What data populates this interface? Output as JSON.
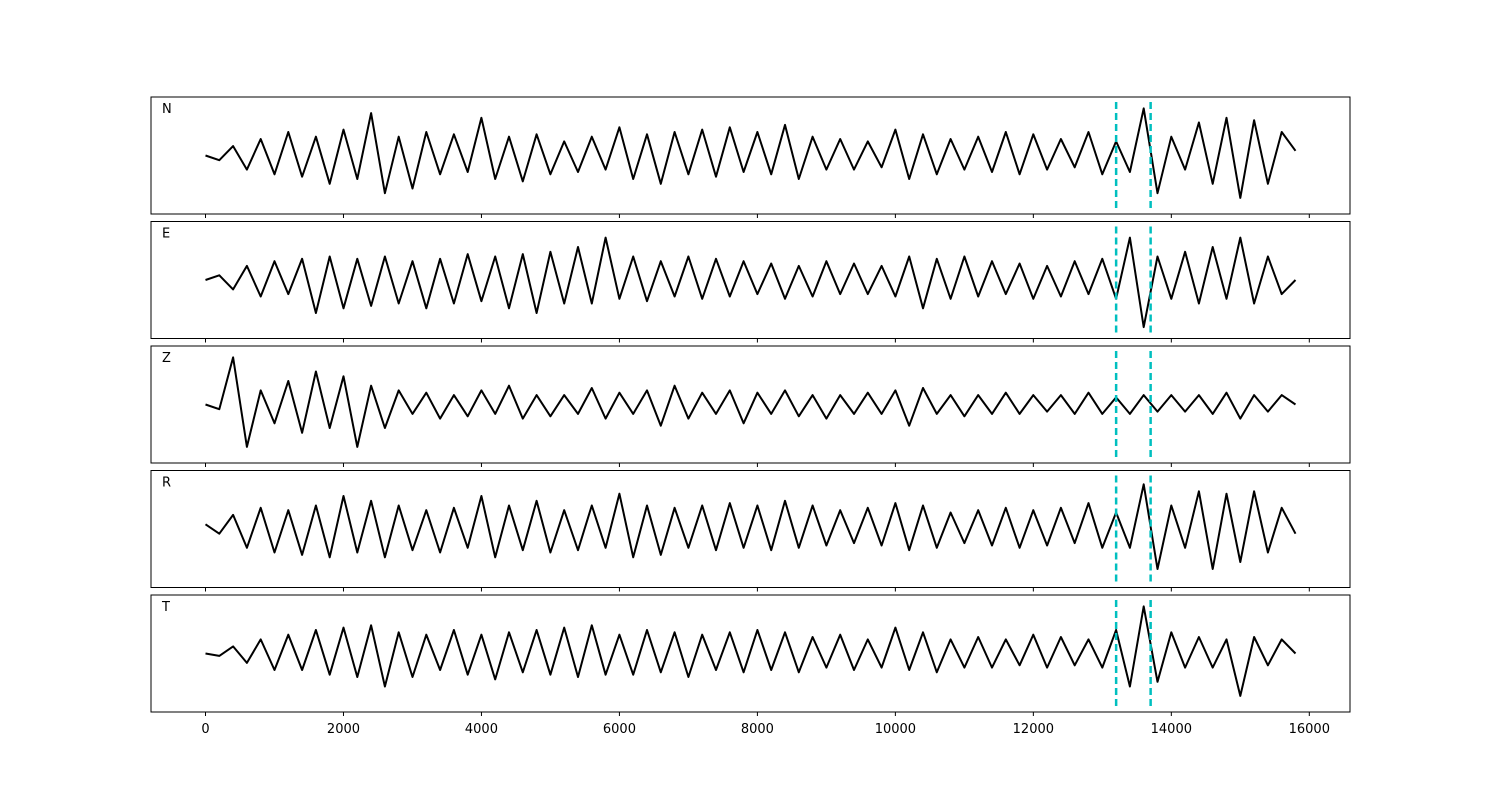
{
  "chart_data": [
    {
      "type": "line",
      "label": "N",
      "color": "#000000",
      "ylim": [
        -1.2,
        1.2
      ],
      "vlines": [
        13200,
        13700
      ],
      "vline_color": "#00bfbf",
      "x": [
        0,
        200,
        400,
        600,
        800,
        1000,
        1200,
        1400,
        1600,
        1800,
        2000,
        2200,
        2400,
        2600,
        2800,
        3000,
        3200,
        3400,
        3600,
        3800,
        4000,
        4200,
        4400,
        4600,
        4800,
        5000,
        5200,
        5400,
        5600,
        5800,
        6000,
        6200,
        6400,
        6600,
        6800,
        7000,
        7200,
        7400,
        7600,
        7800,
        8000,
        8200,
        8400,
        8600,
        8800,
        9000,
        9200,
        9400,
        9600,
        9800,
        10000,
        10200,
        10400,
        10600,
        10800,
        11000,
        11200,
        11400,
        11600,
        11800,
        12000,
        12200,
        12400,
        12600,
        12800,
        13000,
        13200,
        13400,
        13600,
        13800,
        14000,
        14200,
        14400,
        14600,
        14800,
        15000,
        15200,
        15400,
        15600,
        15800
      ],
      "values": [
        0,
        -0.1,
        0.2,
        -0.3,
        0.35,
        -0.4,
        0.5,
        -0.45,
        0.4,
        -0.6,
        0.55,
        -0.5,
        0.9,
        -0.8,
        0.4,
        -0.7,
        0.5,
        -0.4,
        0.45,
        -0.35,
        0.8,
        -0.5,
        0.4,
        -0.55,
        0.45,
        -0.4,
        0.3,
        -0.35,
        0.4,
        -0.3,
        0.6,
        -0.5,
        0.45,
        -0.6,
        0.5,
        -0.4,
        0.55,
        -0.45,
        0.6,
        -0.35,
        0.5,
        -0.4,
        0.65,
        -0.5,
        0.4,
        -0.3,
        0.35,
        -0.3,
        0.3,
        -0.25,
        0.55,
        -0.5,
        0.45,
        -0.4,
        0.35,
        -0.3,
        0.4,
        -0.35,
        0.5,
        -0.4,
        0.45,
        -0.3,
        0.35,
        -0.25,
        0.5,
        -0.4,
        0.3,
        -0.35,
        1.0,
        -0.8,
        0.4,
        -0.3,
        0.7,
        -0.6,
        0.8,
        -0.9,
        0.75,
        -0.6,
        0.5,
        0.1
      ]
    },
    {
      "type": "line",
      "label": "E",
      "color": "#000000",
      "ylim": [
        -1.2,
        1.2
      ],
      "vlines": [
        13200,
        13700
      ],
      "vline_color": "#00bfbf",
      "x": [
        0,
        200,
        400,
        600,
        800,
        1000,
        1200,
        1400,
        1600,
        1800,
        2000,
        2200,
        2400,
        2600,
        2800,
        3000,
        3200,
        3400,
        3600,
        3800,
        4000,
        4200,
        4400,
        4600,
        4800,
        5000,
        5200,
        5400,
        5600,
        5800,
        6000,
        6200,
        6400,
        6600,
        6800,
        7000,
        7200,
        7400,
        7600,
        7800,
        8000,
        8200,
        8400,
        8600,
        8800,
        9000,
        9200,
        9400,
        9600,
        9800,
        10000,
        10200,
        10400,
        10600,
        10800,
        11000,
        11200,
        11400,
        11600,
        11800,
        12000,
        12200,
        12400,
        12600,
        12800,
        13000,
        13200,
        13400,
        13600,
        13800,
        14000,
        14200,
        14400,
        14600,
        14800,
        15000,
        15200,
        15400,
        15600,
        15800
      ],
      "values": [
        0,
        0.1,
        -0.2,
        0.3,
        -0.35,
        0.4,
        -0.3,
        0.45,
        -0.7,
        0.5,
        -0.6,
        0.45,
        -0.55,
        0.5,
        -0.5,
        0.4,
        -0.6,
        0.45,
        -0.5,
        0.55,
        -0.45,
        0.5,
        -0.6,
        0.55,
        -0.7,
        0.6,
        -0.5,
        0.7,
        -0.5,
        0.9,
        -0.4,
        0.5,
        -0.45,
        0.4,
        -0.35,
        0.5,
        -0.4,
        0.45,
        -0.35,
        0.4,
        -0.3,
        0.35,
        -0.4,
        0.3,
        -0.35,
        0.4,
        -0.3,
        0.35,
        -0.3,
        0.3,
        -0.35,
        0.5,
        -0.6,
        0.45,
        -0.4,
        0.5,
        -0.35,
        0.4,
        -0.3,
        0.35,
        -0.4,
        0.3,
        -0.35,
        0.4,
        -0.3,
        0.45,
        -0.4,
        0.9,
        -1.0,
        0.5,
        -0.4,
        0.6,
        -0.5,
        0.7,
        -0.4,
        0.9,
        -0.5,
        0.5,
        -0.3,
        0.0
      ]
    },
    {
      "type": "line",
      "label": "Z",
      "color": "#000000",
      "ylim": [
        -1.2,
        1.2
      ],
      "vlines": [
        13200,
        13700
      ],
      "vline_color": "#00bfbf",
      "x": [
        0,
        200,
        400,
        600,
        800,
        1000,
        1200,
        1400,
        1600,
        1800,
        2000,
        2200,
        2400,
        2600,
        2800,
        3000,
        3200,
        3400,
        3600,
        3800,
        4000,
        4200,
        4400,
        4600,
        4800,
        5000,
        5200,
        5400,
        5600,
        5800,
        6000,
        6200,
        6400,
        6600,
        6800,
        7000,
        7200,
        7400,
        7600,
        7800,
        8000,
        8200,
        8400,
        8600,
        8800,
        9000,
        9200,
        9400,
        9600,
        9800,
        10000,
        10200,
        10400,
        10600,
        10800,
        11000,
        11200,
        11400,
        11600,
        11800,
        12000,
        12200,
        12400,
        12600,
        12800,
        13000,
        13200,
        13400,
        13600,
        13800,
        14000,
        14200,
        14400,
        14600,
        14800,
        15000,
        15200,
        15400,
        15600,
        15800
      ],
      "values": [
        0,
        -0.1,
        1.0,
        -0.9,
        0.3,
        -0.4,
        0.5,
        -0.6,
        0.7,
        -0.5,
        0.6,
        -0.9,
        0.4,
        -0.5,
        0.3,
        -0.2,
        0.25,
        -0.3,
        0.2,
        -0.25,
        0.3,
        -0.2,
        0.4,
        -0.3,
        0.2,
        -0.25,
        0.2,
        -0.2,
        0.35,
        -0.3,
        0.25,
        -0.2,
        0.3,
        -0.45,
        0.4,
        -0.3,
        0.25,
        -0.2,
        0.3,
        -0.4,
        0.25,
        -0.2,
        0.3,
        -0.25,
        0.2,
        -0.3,
        0.2,
        -0.2,
        0.25,
        -0.2,
        0.3,
        -0.45,
        0.35,
        -0.2,
        0.2,
        -0.25,
        0.2,
        -0.2,
        0.25,
        -0.2,
        0.2,
        -0.15,
        0.2,
        -0.2,
        0.25,
        -0.2,
        0.15,
        -0.2,
        0.2,
        -0.15,
        0.2,
        -0.15,
        0.2,
        -0.2,
        0.25,
        -0.3,
        0.2,
        -0.15,
        0.2,
        0.0
      ]
    },
    {
      "type": "line",
      "label": "R",
      "color": "#000000",
      "ylim": [
        -1.2,
        1.2
      ],
      "vlines": [
        13200,
        13700
      ],
      "vline_color": "#00bfbf",
      "x": [
        0,
        200,
        400,
        600,
        800,
        1000,
        1200,
        1400,
        1600,
        1800,
        2000,
        2200,
        2400,
        2600,
        2800,
        3000,
        3200,
        3400,
        3600,
        3800,
        4000,
        4200,
        4400,
        4600,
        4800,
        5000,
        5200,
        5400,
        5600,
        5800,
        6000,
        6200,
        6400,
        6600,
        6800,
        7000,
        7200,
        7400,
        7600,
        7800,
        8000,
        8200,
        8400,
        8600,
        8800,
        9000,
        9200,
        9400,
        9600,
        9800,
        10000,
        10200,
        10400,
        10600,
        10800,
        11000,
        11200,
        11400,
        11600,
        11800,
        12000,
        12200,
        12400,
        12600,
        12800,
        13000,
        13200,
        13400,
        13600,
        13800,
        14000,
        14200,
        14400,
        14600,
        14800,
        15000,
        15200,
        15400,
        15600,
        15800
      ],
      "values": [
        0.1,
        -0.1,
        0.3,
        -0.4,
        0.45,
        -0.5,
        0.4,
        -0.55,
        0.5,
        -0.6,
        0.7,
        -0.5,
        0.6,
        -0.6,
        0.5,
        -0.45,
        0.4,
        -0.5,
        0.45,
        -0.4,
        0.7,
        -0.6,
        0.5,
        -0.45,
        0.6,
        -0.5,
        0.4,
        -0.45,
        0.5,
        -0.4,
        0.75,
        -0.6,
        0.5,
        -0.55,
        0.45,
        -0.4,
        0.5,
        -0.45,
        0.55,
        -0.4,
        0.5,
        -0.45,
        0.6,
        -0.4,
        0.5,
        -0.35,
        0.4,
        -0.3,
        0.45,
        -0.35,
        0.55,
        -0.45,
        0.5,
        -0.4,
        0.35,
        -0.3,
        0.4,
        -0.35,
        0.45,
        -0.4,
        0.4,
        -0.35,
        0.45,
        -0.3,
        0.55,
        -0.4,
        0.35,
        -0.4,
        0.95,
        -0.85,
        0.5,
        -0.4,
        0.8,
        -0.85,
        0.75,
        -0.7,
        0.8,
        -0.5,
        0.45,
        -0.1
      ]
    },
    {
      "type": "line",
      "label": "T",
      "color": "#000000",
      "ylim": [
        -1.2,
        1.2
      ],
      "vlines": [
        13200,
        13700
      ],
      "vline_color": "#00bfbf",
      "x": [
        0,
        200,
        400,
        600,
        800,
        1000,
        1200,
        1400,
        1600,
        1800,
        2000,
        2200,
        2400,
        2600,
        2800,
        3000,
        3200,
        3400,
        3600,
        3800,
        4000,
        4200,
        4400,
        4600,
        4800,
        5000,
        5200,
        5400,
        5600,
        5800,
        6000,
        6200,
        6400,
        6600,
        6800,
        7000,
        7200,
        7400,
        7600,
        7800,
        8000,
        8200,
        8400,
        8600,
        8800,
        9000,
        9200,
        9400,
        9600,
        9800,
        10000,
        10200,
        10400,
        10600,
        10800,
        11000,
        11200,
        11400,
        11600,
        11800,
        12000,
        12200,
        12400,
        12600,
        12800,
        13000,
        13200,
        13400,
        13600,
        13800,
        14000,
        14200,
        14400,
        14600,
        14800,
        15000,
        15200,
        15400,
        15600,
        15800
      ],
      "values": [
        0,
        -0.05,
        0.15,
        -0.2,
        0.3,
        -0.35,
        0.4,
        -0.35,
        0.5,
        -0.45,
        0.55,
        -0.5,
        0.6,
        -0.7,
        0.45,
        -0.5,
        0.4,
        -0.35,
        0.5,
        -0.45,
        0.4,
        -0.55,
        0.45,
        -0.4,
        0.5,
        -0.45,
        0.55,
        -0.5,
        0.6,
        -0.45,
        0.4,
        -0.45,
        0.5,
        -0.4,
        0.45,
        -0.5,
        0.4,
        -0.35,
        0.45,
        -0.4,
        0.5,
        -0.35,
        0.45,
        -0.4,
        0.35,
        -0.3,
        0.4,
        -0.35,
        0.3,
        -0.3,
        0.55,
        -0.35,
        0.45,
        -0.4,
        0.3,
        -0.3,
        0.35,
        -0.3,
        0.3,
        -0.25,
        0.4,
        -0.3,
        0.35,
        -0.25,
        0.3,
        -0.3,
        0.5,
        -0.7,
        1.0,
        -0.6,
        0.45,
        -0.3,
        0.35,
        -0.3,
        0.3,
        -0.9,
        0.35,
        -0.25,
        0.3,
        0.0
      ],
      "xlim": [
        -790,
        16590
      ],
      "xticks": [
        0,
        2000,
        4000,
        6000,
        8000,
        10000,
        12000,
        14000,
        16000
      ]
    }
  ]
}
